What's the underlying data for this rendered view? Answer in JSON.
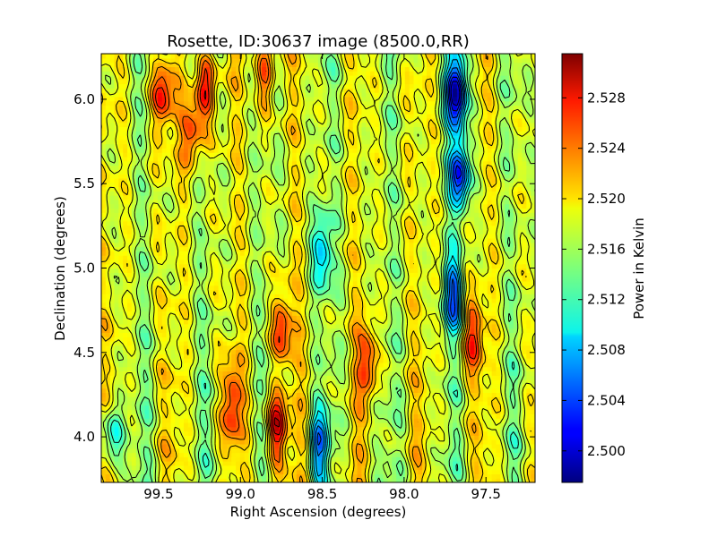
{
  "chart_data": {
    "type": "heatmap",
    "title": "Rosette, ID:30637 image (8500.0,RR)",
    "xlabel": "Right Ascension (degrees)",
    "ylabel": "Declination (degrees)",
    "xlim": [
      99.85,
      97.2
    ],
    "ylim": [
      3.73,
      6.27
    ],
    "xticks": [
      99.5,
      99.0,
      98.5,
      98.0,
      97.5
    ],
    "xtick_labels": [
      "99.5",
      "99.0",
      "98.5",
      "98.0",
      "97.5"
    ],
    "yticks": [
      4.0,
      4.5,
      5.0,
      5.5,
      6.0
    ],
    "ytick_labels": [
      "4.0",
      "4.5",
      "5.0",
      "5.5",
      "6.0"
    ],
    "colorbar": {
      "label": "Power in Kelvin",
      "range": [
        2.4975,
        2.5315
      ],
      "ticks": [
        2.5,
        2.504,
        2.508,
        2.512,
        2.516,
        2.52,
        2.524,
        2.528
      ],
      "tick_labels": [
        "2.500",
        "2.504",
        "2.508",
        "2.512",
        "2.516",
        "2.520",
        "2.524",
        "2.528"
      ],
      "colormap": "jet"
    },
    "contours": true,
    "features": [
      {
        "ra": 98.78,
        "dec": 4.05,
        "value": 2.5295
      },
      {
        "ra": 98.75,
        "dec": 4.65,
        "value": 2.5265
      },
      {
        "ra": 99.22,
        "dec": 6.05,
        "value": 2.5285
      },
      {
        "ra": 99.3,
        "dec": 5.8,
        "value": 2.5255
      },
      {
        "ra": 99.48,
        "dec": 6.02,
        "value": 2.5265
      },
      {
        "ra": 98.85,
        "dec": 6.15,
        "value": 2.526
      },
      {
        "ra": 99.05,
        "dec": 4.2,
        "value": 2.5255
      },
      {
        "ra": 98.22,
        "dec": 4.45,
        "value": 2.5255
      },
      {
        "ra": 97.58,
        "dec": 4.6,
        "value": 2.5255
      },
      {
        "ra": 97.68,
        "dec": 6.05,
        "value": 2.4985
      },
      {
        "ra": 97.66,
        "dec": 5.55,
        "value": 2.5025
      },
      {
        "ra": 97.7,
        "dec": 4.85,
        "value": 2.505
      },
      {
        "ra": 98.5,
        "dec": 5.1,
        "value": 2.508
      },
      {
        "ra": 98.52,
        "dec": 3.95,
        "value": 2.507
      },
      {
        "ra": 99.78,
        "dec": 4.0,
        "value": 2.509
      }
    ]
  }
}
